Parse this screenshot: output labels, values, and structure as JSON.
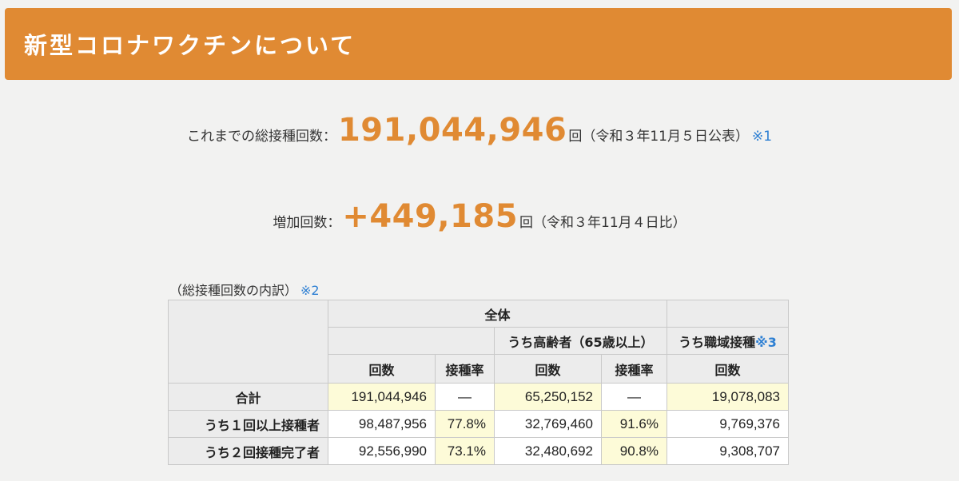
{
  "header": {
    "title": "新型コロナワクチンについて"
  },
  "total": {
    "label": "これまでの総接種回数：",
    "value": "191,044,946",
    "unit_note": "回（令和３年11月５日公表）",
    "note_ref": "※1"
  },
  "increase": {
    "label": "増加回数：",
    "value": "+449,185",
    "unit_note": "回（令和３年11月４日比）"
  },
  "breakdown": {
    "caption": "（総接種回数の内訳）",
    "caption_note": "※2",
    "headers": {
      "all": "全体",
      "elderly": "うち高齢者（65歳以上）",
      "workplace": "うち職域接種",
      "workplace_note": "※3",
      "count": "回数",
      "rate": "接種率"
    },
    "rows": [
      {
        "label": "合計",
        "all_count": "191,044,946",
        "all_rate": "—",
        "elderly_count": "65,250,152",
        "elderly_rate": "—",
        "workplace_count": "19,078,083"
      },
      {
        "label": "うち１回以上接種者",
        "all_count": "98,487,956",
        "all_rate": "77.8%",
        "elderly_count": "32,769,460",
        "elderly_rate": "91.6%",
        "workplace_count": "9,769,376"
      },
      {
        "label": "うち２回接種完了者",
        "all_count": "92,556,990",
        "all_rate": "73.1%",
        "elderly_count": "32,480,692",
        "elderly_rate": "90.8%",
        "workplace_count": "9,308,707"
      }
    ]
  },
  "colors": {
    "accent": "#e08a33",
    "link": "#2d7fd3",
    "highlight": "#fdfbd8"
  }
}
